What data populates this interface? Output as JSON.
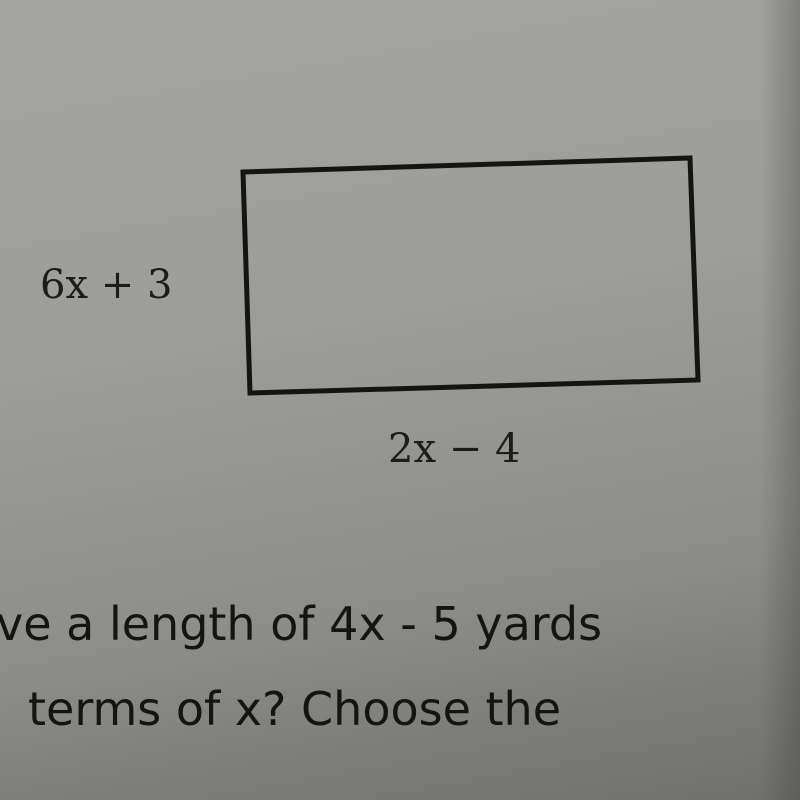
{
  "figure": {
    "side_label": "6x + 3",
    "bottom_label": "2x − 4"
  },
  "text": {
    "lines": [
      "ve a length of 4x - 5 yards",
      "terms of x?  Choose the"
    ]
  }
}
